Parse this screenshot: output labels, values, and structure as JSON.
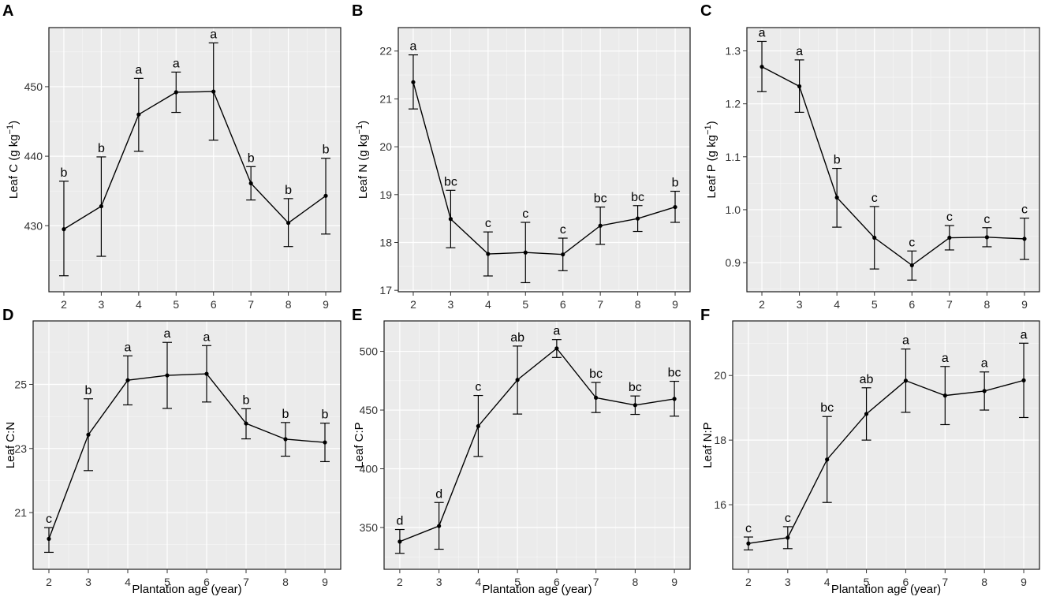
{
  "figure": {
    "x_label": "Plantation age (year)"
  },
  "chart_data": [
    {
      "panel": "A",
      "type": "line",
      "ylabel_main": "Leaf C (g kg",
      "ylabel_sup": "−1",
      "ylabel_end": ")",
      "x": [
        2,
        3,
        4,
        5,
        6,
        7,
        8,
        9
      ],
      "values": [
        429.5,
        432.8,
        446.0,
        449.2,
        449.3,
        436.1,
        430.4,
        434.3
      ],
      "err_low": [
        422.8,
        425.6,
        440.7,
        446.3,
        442.3,
        433.7,
        427.0,
        428.8
      ],
      "err_high": [
        436.4,
        439.9,
        451.2,
        452.1,
        456.3,
        438.5,
        433.9,
        439.7
      ],
      "letters": [
        "b",
        "b",
        "a",
        "a",
        "a",
        "b",
        "b",
        "b"
      ],
      "ylim": [
        420.5,
        458.5
      ],
      "yticks": [
        430,
        440,
        450
      ],
      "ytick_labels": [
        "430",
        "440",
        "450"
      ],
      "xticks": [
        "2",
        "3",
        "4",
        "5",
        "6",
        "7",
        "8",
        "9"
      ]
    },
    {
      "panel": "B",
      "type": "line",
      "ylabel_main": "Leaf N (g kg",
      "ylabel_sup": "−1",
      "ylabel_end": ")",
      "x": [
        2,
        3,
        4,
        5,
        6,
        7,
        8,
        9
      ],
      "values": [
        21.35,
        18.49,
        17.76,
        17.79,
        17.75,
        18.35,
        18.5,
        18.74
      ],
      "err_low": [
        20.79,
        17.89,
        17.3,
        17.16,
        17.41,
        17.96,
        18.23,
        18.42
      ],
      "err_high": [
        21.92,
        19.09,
        18.22,
        18.42,
        18.09,
        18.74,
        18.77,
        19.07
      ],
      "letters": [
        "a",
        "bc",
        "c",
        "c",
        "c",
        "bc",
        "bc",
        "b"
      ],
      "ylim": [
        16.97,
        22.49
      ],
      "yticks": [
        17,
        18,
        19,
        20,
        21,
        22
      ],
      "ytick_labels": [
        "17",
        "18",
        "19",
        "20",
        "21",
        "22"
      ],
      "xticks": [
        "2",
        "3",
        "4",
        "5",
        "6",
        "7",
        "8",
        "9"
      ]
    },
    {
      "panel": "C",
      "type": "line",
      "ylabel_main": "Leaf P (g kg",
      "ylabel_sup": "−1",
      "ylabel_end": ")",
      "x": [
        2,
        3,
        4,
        5,
        6,
        7,
        8,
        9
      ],
      "values": [
        1.27,
        1.233,
        1.023,
        0.947,
        0.895,
        0.947,
        0.948,
        0.945
      ],
      "err_low": [
        1.223,
        1.184,
        0.967,
        0.888,
        0.867,
        0.924,
        0.93,
        0.906
      ],
      "err_high": [
        1.318,
        1.283,
        1.078,
        1.006,
        0.922,
        0.97,
        0.966,
        0.984
      ],
      "letters": [
        "a",
        "a",
        "b",
        "c",
        "c",
        "c",
        "c",
        "c"
      ],
      "ylim": [
        0.845,
        1.344
      ],
      "yticks": [
        0.9,
        1.0,
        1.1,
        1.2,
        1.3
      ],
      "ytick_labels": [
        "0.9",
        "1.0",
        "1.1",
        "1.2",
        "1.3"
      ],
      "xticks": [
        "2",
        "3",
        "4",
        "5",
        "6",
        "7",
        "8",
        "9"
      ]
    },
    {
      "panel": "D",
      "type": "line",
      "ylabel_main": "Leaf C:N",
      "ylabel_sup": "",
      "ylabel_end": "",
      "x": [
        2,
        3,
        4,
        5,
        6,
        7,
        8,
        9
      ],
      "values": [
        20.18,
        23.43,
        25.13,
        25.28,
        25.33,
        23.78,
        23.29,
        23.19
      ],
      "err_low": [
        19.76,
        22.31,
        24.36,
        24.25,
        24.45,
        23.3,
        22.76,
        22.59
      ],
      "err_high": [
        20.53,
        24.55,
        25.89,
        26.31,
        26.21,
        24.24,
        23.81,
        23.79
      ],
      "letters": [
        "c",
        "b",
        "a",
        "a",
        "a",
        "b",
        "b",
        "b"
      ],
      "ylim": [
        19.23,
        26.98
      ],
      "yticks": [
        21,
        23,
        25
      ],
      "ytick_labels": [
        "21",
        "23",
        "25"
      ],
      "xticks": [
        "2",
        "3",
        "4",
        "5",
        "6",
        "7",
        "8",
        "9"
      ]
    },
    {
      "panel": "E",
      "type": "line",
      "ylabel_main": "Leaf C:P",
      "ylabel_sup": "",
      "ylabel_end": "",
      "x": [
        2,
        3,
        4,
        5,
        6,
        7,
        8,
        9
      ],
      "values": [
        338.0,
        351.3,
        436.3,
        475.7,
        502.5,
        460.5,
        454.2,
        459.5
      ],
      "err_low": [
        328.0,
        331.5,
        410.5,
        446.6,
        494.8,
        447.9,
        446.3,
        444.8
      ],
      "err_high": [
        348.3,
        371.3,
        462.4,
        504.5,
        510.0,
        473.5,
        462.0,
        474.5
      ],
      "letters": [
        "d",
        "d",
        "c",
        "ab",
        "a",
        "bc",
        "bc",
        "bc"
      ],
      "ylim": [
        314.4,
        525.9
      ],
      "yticks": [
        350,
        400,
        450,
        500
      ],
      "ytick_labels": [
        "350",
        "400",
        "450",
        "500"
      ],
      "xticks": [
        "2",
        "3",
        "4",
        "5",
        "6",
        "7",
        "8",
        "9"
      ]
    },
    {
      "panel": "F",
      "type": "line",
      "ylabel_main": "Leaf N:P",
      "ylabel_sup": "",
      "ylabel_end": "",
      "x": [
        2,
        3,
        4,
        5,
        6,
        7,
        8,
        9
      ],
      "values": [
        14.8,
        14.98,
        17.4,
        18.81,
        19.84,
        19.38,
        19.52,
        19.85
      ],
      "err_low": [
        14.6,
        14.64,
        16.07,
        18.0,
        18.86,
        18.48,
        18.93,
        18.7
      ],
      "err_high": [
        15.0,
        15.32,
        18.73,
        19.62,
        20.82,
        20.28,
        20.11,
        21.0
      ],
      "letters": [
        "c",
        "c",
        "bc",
        "ab",
        "a",
        "a",
        "a",
        "a"
      ],
      "ylim": [
        14.0,
        21.69
      ],
      "yticks": [
        16,
        18,
        20
      ],
      "ytick_labels": [
        "16",
        "18",
        "20"
      ],
      "xticks": [
        "2",
        "3",
        "4",
        "5",
        "6",
        "7",
        "8",
        "9"
      ]
    }
  ]
}
